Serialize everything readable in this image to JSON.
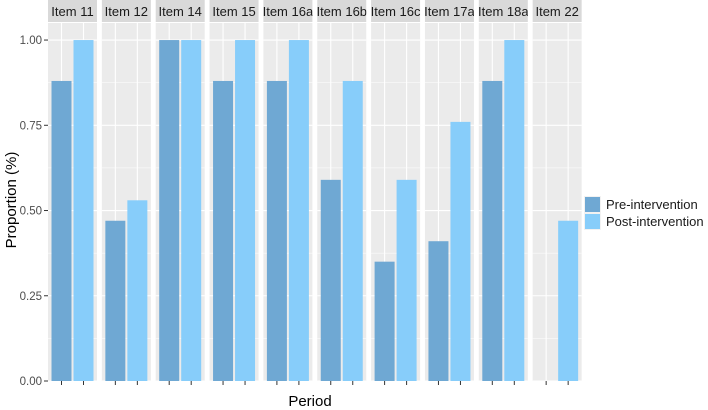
{
  "chart_data": {
    "type": "bar",
    "facets": [
      "Item 11",
      "Item 12",
      "Item 14",
      "Item 15",
      "Item 16a",
      "Item 16b",
      "Item 16c",
      "Item 17a",
      "Item 18a",
      "Item 22"
    ],
    "series": [
      {
        "name": "Pre-intervention",
        "values": [
          0.88,
          0.47,
          1.0,
          0.88,
          0.88,
          0.59,
          0.35,
          0.41,
          0.88,
          0.0
        ]
      },
      {
        "name": "Post-intervention",
        "values": [
          1.0,
          0.53,
          1.0,
          1.0,
          1.0,
          0.88,
          0.59,
          0.76,
          1.0,
          0.47
        ]
      }
    ],
    "colors": {
      "Pre-intervention": "#6fa8d3",
      "Post-intervention": "#87cdfa"
    },
    "xlabel": "Period",
    "ylabel": "Proportion (%)",
    "ylim": [
      0,
      1.05
    ],
    "yticks": [
      0.0,
      0.25,
      0.5,
      0.75,
      1.0
    ],
    "ytick_labels": [
      "0.00",
      "0.25",
      "0.50",
      "0.75",
      "1.00"
    ],
    "grid": true,
    "legend_position": "right"
  }
}
